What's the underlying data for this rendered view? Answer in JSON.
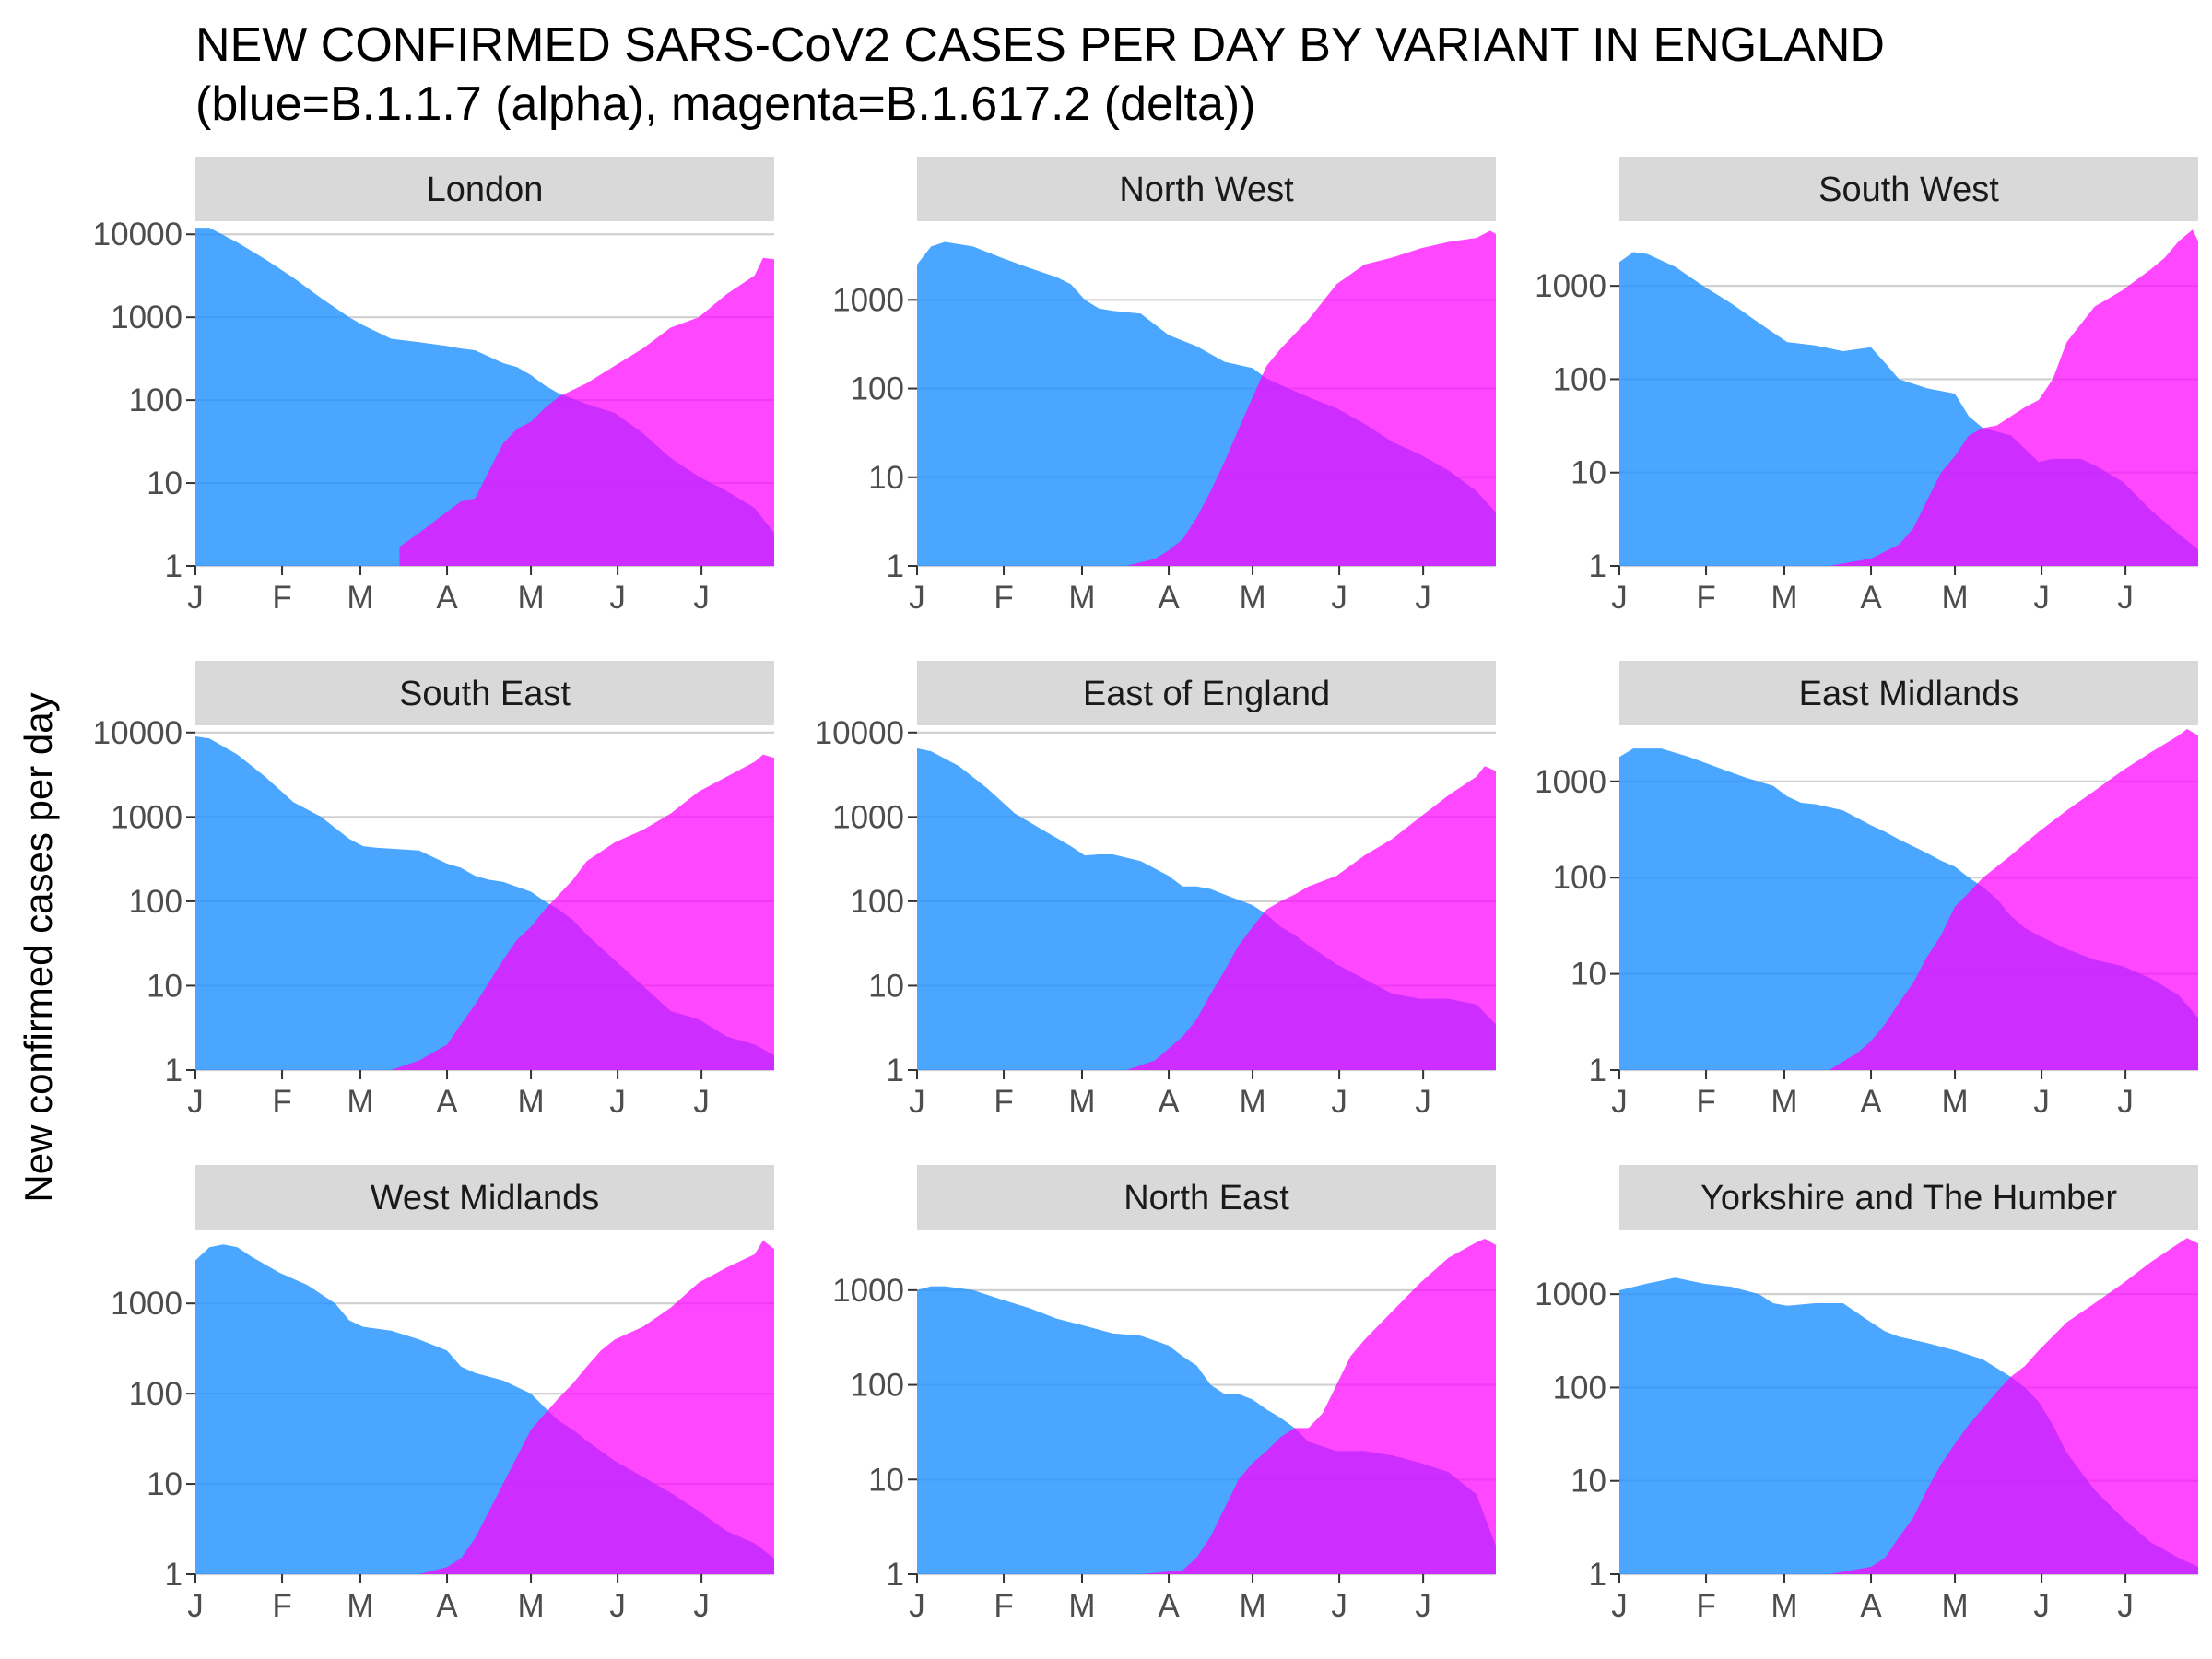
{
  "colors": {
    "alpha": "#1E90FF",
    "delta": "#FF00FF",
    "strip": "#D9D9D9",
    "grid": "#D0D0D0",
    "axis": "#333333"
  },
  "chart_data": {
    "type": "area",
    "title": "NEW CONFIRMED SARS-CoV2 CASES PER DAY BY VARIANT IN ENGLAND",
    "subtitle": "(blue=B.1.1.7 (alpha), magenta=B.1.617.2 (delta))",
    "xlabel": "",
    "ylabel": "New confirmed cases per day",
    "y_scale": "log10",
    "x_ticks": [
      "J",
      "F",
      "M",
      "A",
      "M",
      "J",
      "J"
    ],
    "x_tick_positions": [
      0,
      31,
      59,
      90,
      120,
      151,
      181
    ],
    "x_range": [
      0,
      207
    ],
    "grid": "horizontal major",
    "legend": "none (colors described in subtitle)",
    "panels": [
      {
        "name": "London",
        "ylim": [
          1,
          13000
        ],
        "y_ticks": [
          1,
          10,
          100,
          1000,
          10000
        ],
        "alpha": {
          "x": [
            0,
            5,
            15,
            25,
            35,
            45,
            55,
            60,
            70,
            80,
            90,
            95,
            100,
            110,
            115,
            120,
            125,
            130,
            140,
            150,
            160,
            170,
            180,
            190,
            200,
            207
          ],
          "y": [
            12000,
            12000,
            8000,
            5000,
            3000,
            1700,
            1000,
            800,
            550,
            500,
            450,
            420,
            400,
            280,
            250,
            200,
            150,
            120,
            90,
            70,
            40,
            20,
            12,
            8,
            5,
            2.5
          ]
        },
        "delta": {
          "x": [
            73,
            80,
            90,
            95,
            100,
            105,
            110,
            115,
            120,
            125,
            130,
            140,
            150,
            160,
            170,
            180,
            190,
            200,
            203,
            207
          ],
          "y": [
            1.7,
            2.5,
            4.5,
            6,
            6.5,
            14,
            30,
            45,
            55,
            80,
            110,
            160,
            260,
            420,
            750,
            1000,
            1900,
            3200,
            5200,
            5000
          ]
        }
      },
      {
        "name": "North West",
        "ylim": [
          1,
          7000
        ],
        "y_ticks": [
          1,
          10,
          100,
          1000
        ],
        "alpha": {
          "x": [
            0,
            5,
            10,
            20,
            30,
            40,
            50,
            55,
            60,
            65,
            70,
            80,
            90,
            100,
            110,
            120,
            125,
            130,
            140,
            150,
            160,
            170,
            180,
            190,
            200,
            207
          ],
          "y": [
            2500,
            4000,
            4500,
            4000,
            3000,
            2300,
            1800,
            1500,
            1000,
            800,
            750,
            700,
            400,
            300,
            200,
            170,
            130,
            110,
            80,
            60,
            40,
            25,
            18,
            12,
            7,
            4
          ]
        },
        "delta": {
          "x": [
            75,
            80,
            85,
            90,
            95,
            100,
            105,
            110,
            115,
            120,
            125,
            130,
            140,
            150,
            160,
            170,
            180,
            190,
            200,
            205,
            207
          ],
          "y": [
            1,
            1.1,
            1.2,
            1.5,
            2,
            3.5,
            7,
            15,
            35,
            80,
            180,
            280,
            600,
            1500,
            2500,
            3000,
            3800,
            4500,
            5000,
            6000,
            5500
          ]
        }
      },
      {
        "name": "South West",
        "ylim": [
          1,
          4500
        ],
        "y_ticks": [
          1,
          10,
          100,
          1000
        ],
        "alpha": {
          "x": [
            0,
            5,
            10,
            20,
            30,
            40,
            50,
            60,
            70,
            80,
            90,
            95,
            100,
            110,
            120,
            125,
            130,
            140,
            145,
            150,
            155,
            160,
            165,
            170,
            180,
            190,
            200,
            207
          ],
          "y": [
            1800,
            2300,
            2200,
            1600,
            1000,
            650,
            400,
            250,
            230,
            200,
            220,
            150,
            100,
            80,
            70,
            40,
            30,
            25,
            18,
            13,
            14,
            14,
            14,
            12,
            8,
            4,
            2.2,
            1.5
          ]
        },
        "delta": {
          "x": [
            75,
            90,
            100,
            105,
            110,
            115,
            120,
            125,
            130,
            135,
            140,
            145,
            150,
            155,
            160,
            170,
            180,
            190,
            195,
            200,
            205,
            207
          ],
          "y": [
            1,
            1.2,
            1.7,
            2.5,
            5,
            10,
            15,
            25,
            30,
            32,
            40,
            50,
            60,
            100,
            250,
            600,
            900,
            1500,
            2000,
            3000,
            4000,
            3000
          ]
        }
      },
      {
        "name": "South East",
        "ylim": [
          1,
          11000
        ],
        "y_ticks": [
          1,
          10,
          100,
          1000,
          10000
        ],
        "alpha": {
          "x": [
            0,
            5,
            15,
            25,
            35,
            45,
            55,
            60,
            65,
            70,
            80,
            90,
            95,
            100,
            105,
            110,
            120,
            125,
            130,
            135,
            140,
            150,
            160,
            170,
            180,
            190,
            200,
            207
          ],
          "y": [
            9000,
            8500,
            5500,
            3000,
            1500,
            1000,
            550,
            450,
            430,
            420,
            400,
            280,
            250,
            200,
            180,
            170,
            130,
            100,
            80,
            60,
            40,
            20,
            10,
            5,
            4,
            2.5,
            2,
            1.5
          ]
        },
        "delta": {
          "x": [
            70,
            80,
            90,
            95,
            100,
            105,
            110,
            115,
            120,
            125,
            130,
            135,
            140,
            150,
            160,
            170,
            180,
            190,
            200,
            203,
            207
          ],
          "y": [
            1,
            1.3,
            2,
            3.5,
            6,
            11,
            20,
            35,
            50,
            80,
            120,
            180,
            300,
            500,
            700,
            1100,
            2000,
            3000,
            4500,
            5500,
            5000
          ]
        }
      },
      {
        "name": "East of England",
        "ylim": [
          1,
          11000
        ],
        "y_ticks": [
          1,
          10,
          100,
          1000,
          10000
        ],
        "alpha": {
          "x": [
            0,
            5,
            15,
            25,
            35,
            45,
            55,
            60,
            65,
            70,
            80,
            90,
            95,
            100,
            105,
            110,
            120,
            125,
            130,
            135,
            140,
            150,
            160,
            170,
            180,
            190,
            200,
            207
          ],
          "y": [
            6500,
            6000,
            4000,
            2200,
            1100,
            700,
            450,
            350,
            360,
            360,
            300,
            200,
            150,
            150,
            140,
            120,
            90,
            70,
            50,
            40,
            30,
            18,
            12,
            8,
            7,
            7,
            6,
            3.5
          ]
        },
        "delta": {
          "x": [
            75,
            85,
            90,
            95,
            100,
            105,
            110,
            115,
            120,
            125,
            130,
            135,
            140,
            150,
            160,
            170,
            180,
            190,
            200,
            203,
            207
          ],
          "y": [
            1,
            1.3,
            1.8,
            2.5,
            4,
            8,
            15,
            30,
            50,
            80,
            100,
            120,
            150,
            200,
            350,
            550,
            1000,
            1800,
            3000,
            4000,
            3500
          ]
        }
      },
      {
        "name": "East Midlands",
        "ylim": [
          1,
          3500
        ],
        "y_ticks": [
          1,
          10,
          100,
          1000
        ],
        "alpha": {
          "x": [
            0,
            5,
            15,
            25,
            35,
            45,
            55,
            60,
            65,
            70,
            80,
            90,
            95,
            100,
            110,
            115,
            120,
            125,
            130,
            135,
            140,
            145,
            150,
            160,
            170,
            180,
            190,
            200,
            207
          ],
          "y": [
            1800,
            2200,
            2200,
            1800,
            1400,
            1100,
            900,
            700,
            600,
            580,
            500,
            350,
            300,
            250,
            180,
            150,
            130,
            100,
            80,
            60,
            40,
            30,
            25,
            18,
            14,
            12,
            9,
            6,
            3.5
          ]
        },
        "delta": {
          "x": [
            75,
            85,
            90,
            95,
            100,
            105,
            110,
            115,
            120,
            125,
            130,
            135,
            140,
            150,
            160,
            170,
            180,
            190,
            200,
            203,
            207
          ],
          "y": [
            1,
            1.5,
            2,
            3,
            5,
            8,
            15,
            25,
            50,
            70,
            100,
            130,
            170,
            300,
            500,
            800,
            1300,
            2000,
            3000,
            3500,
            3000
          ]
        }
      },
      {
        "name": "West Midlands",
        "ylim": [
          1,
          6000
        ],
        "y_ticks": [
          1,
          10,
          100,
          1000
        ],
        "alpha": {
          "x": [
            0,
            5,
            10,
            15,
            20,
            30,
            40,
            50,
            55,
            60,
            70,
            80,
            90,
            95,
            100,
            110,
            120,
            125,
            130,
            135,
            140,
            150,
            160,
            170,
            180,
            190,
            200,
            207
          ],
          "y": [
            3000,
            4200,
            4500,
            4200,
            3300,
            2200,
            1600,
            1000,
            650,
            550,
            500,
            400,
            300,
            200,
            170,
            140,
            100,
            70,
            50,
            40,
            30,
            18,
            12,
            8,
            5,
            3,
            2.2,
            1.5
          ]
        },
        "delta": {
          "x": [
            80,
            90,
            95,
            100,
            105,
            110,
            115,
            120,
            125,
            130,
            135,
            140,
            145,
            150,
            160,
            170,
            180,
            190,
            200,
            203,
            207
          ],
          "y": [
            1,
            1.2,
            1.5,
            2.5,
            5,
            10,
            20,
            40,
            60,
            90,
            130,
            200,
            300,
            400,
            550,
            900,
            1700,
            2500,
            3500,
            5000,
            4000
          ]
        }
      },
      {
        "name": "North East",
        "ylim": [
          1,
          4000
        ],
        "y_ticks": [
          1,
          10,
          100,
          1000
        ],
        "alpha": {
          "x": [
            0,
            5,
            10,
            20,
            30,
            40,
            50,
            60,
            70,
            80,
            90,
            95,
            100,
            105,
            110,
            115,
            120,
            125,
            130,
            135,
            140,
            150,
            160,
            170,
            180,
            190,
            200,
            207
          ],
          "y": [
            1000,
            1100,
            1100,
            1000,
            800,
            650,
            500,
            420,
            350,
            330,
            260,
            200,
            160,
            100,
            80,
            80,
            70,
            55,
            45,
            35,
            25,
            20,
            20,
            18,
            15,
            12,
            7,
            2
          ]
        },
        "delta": {
          "x": [
            80,
            95,
            100,
            105,
            110,
            115,
            120,
            125,
            130,
            135,
            140,
            145,
            150,
            155,
            160,
            170,
            180,
            190,
            200,
            203,
            207
          ],
          "y": [
            1,
            1.1,
            1.5,
            2.5,
            5,
            10,
            15,
            20,
            28,
            35,
            35,
            50,
            100,
            200,
            300,
            600,
            1200,
            2200,
            3200,
            3500,
            3000
          ]
        }
      },
      {
        "name": "Yorkshire and The Humber",
        "ylim": [
          1,
          4500
        ],
        "y_ticks": [
          1,
          10,
          100,
          1000
        ],
        "alpha": {
          "x": [
            0,
            10,
            20,
            30,
            40,
            50,
            55,
            60,
            70,
            80,
            90,
            95,
            100,
            110,
            120,
            130,
            140,
            145,
            150,
            155,
            160,
            170,
            180,
            190,
            200,
            207
          ],
          "y": [
            1100,
            1300,
            1500,
            1300,
            1200,
            1000,
            800,
            750,
            800,
            800,
            500,
            400,
            350,
            300,
            250,
            200,
            130,
            100,
            70,
            40,
            20,
            8,
            4,
            2.2,
            1.5,
            1.2
          ]
        },
        "delta": {
          "x": [
            75,
            90,
            95,
            100,
            105,
            110,
            115,
            120,
            125,
            130,
            135,
            140,
            145,
            150,
            160,
            170,
            180,
            190,
            200,
            203,
            207
          ],
          "y": [
            1,
            1.2,
            1.5,
            2.5,
            4,
            8,
            15,
            25,
            40,
            60,
            90,
            130,
            170,
            250,
            500,
            800,
            1300,
            2200,
            3500,
            4000,
            3500
          ]
        }
      }
    ]
  }
}
